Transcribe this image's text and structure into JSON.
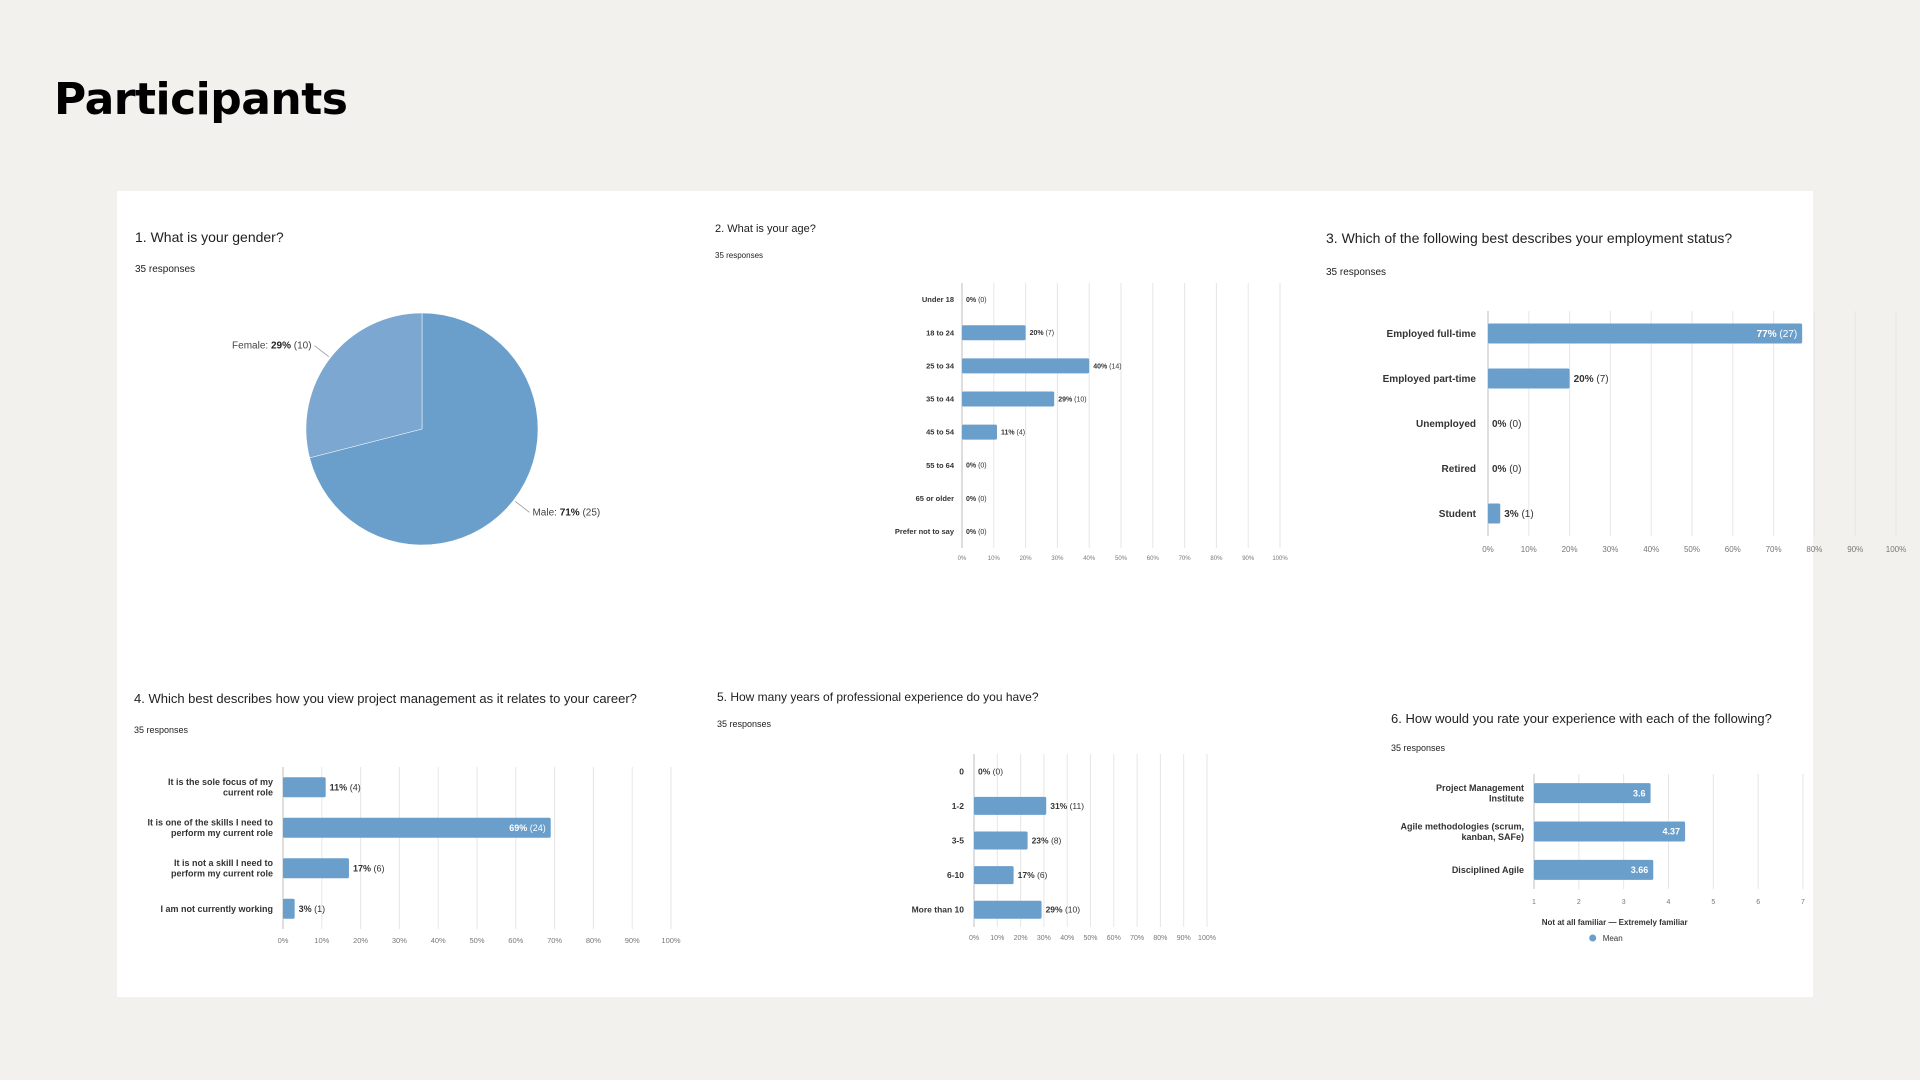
{
  "page": {
    "title": "Participants"
  },
  "colors": {
    "bar": "#6a9ecb",
    "pie_major": "#6a9ecb",
    "pie_minor": "#7ba7d1",
    "grid": "#e6e6e6",
    "axis": "#bdbdbd"
  },
  "chart_data": [
    {
      "id": "gender",
      "type": "pie",
      "title": "1. What is your gender?",
      "responses": "35 responses",
      "slices": [
        {
          "name": "Male",
          "value": 71,
          "count": 25,
          "pct_label": "71%",
          "count_label": "(25)"
        },
        {
          "name": "Female",
          "value": 29,
          "count": 10,
          "pct_label": "29%",
          "count_label": "(10)"
        }
      ]
    },
    {
      "id": "age",
      "type": "bar",
      "orientation": "horizontal",
      "title": "2. What is your age?",
      "responses": "35 responses",
      "categories": [
        "Under 18",
        "18 to 24",
        "25 to 34",
        "35 to 44",
        "45 to 54",
        "55 to 64",
        "65 or older",
        "Prefer not to say"
      ],
      "values": [
        0,
        20,
        40,
        29,
        11,
        0,
        0,
        0
      ],
      "counts": [
        0,
        7,
        14,
        10,
        4,
        0,
        0,
        0
      ],
      "xlim": [
        0,
        100
      ],
      "xticks": [
        "0%",
        "10%",
        "20%",
        "30%",
        "40%",
        "50%",
        "60%",
        "70%",
        "80%",
        "90%",
        "100%"
      ]
    },
    {
      "id": "employment",
      "type": "bar",
      "orientation": "horizontal",
      "title": "3. Which of the following best describes your employment status?",
      "responses": "35 responses",
      "categories": [
        "Employed full-time",
        "Employed part-time",
        "Unemployed",
        "Retired",
        "Student"
      ],
      "values": [
        77,
        20,
        0,
        0,
        3
      ],
      "counts": [
        27,
        7,
        0,
        0,
        1
      ],
      "xlim": [
        0,
        100
      ],
      "xticks": [
        "0%",
        "10%",
        "20%",
        "30%",
        "40%",
        "50%",
        "60%",
        "70%",
        "80%",
        "90%",
        "100%"
      ]
    },
    {
      "id": "pm_view",
      "type": "bar",
      "orientation": "horizontal",
      "title": "4. Which best describes how you view project management as it relates to your career?",
      "responses": "35 responses",
      "categories": [
        [
          "It is the sole focus of my",
          "current role"
        ],
        [
          "It is one of the skills I need to",
          "perform my current role"
        ],
        [
          "It is not a skill I need to",
          "perform my current role"
        ],
        [
          "I am not currently working"
        ]
      ],
      "values": [
        11,
        69,
        17,
        3
      ],
      "counts": [
        4,
        24,
        6,
        1
      ],
      "xlim": [
        0,
        100
      ],
      "xticks": [
        "0%",
        "10%",
        "20%",
        "30%",
        "40%",
        "50%",
        "60%",
        "70%",
        "80%",
        "90%",
        "100%"
      ]
    },
    {
      "id": "experience",
      "type": "bar",
      "orientation": "horizontal",
      "title": "5. How many years of professional experience do you have?",
      "responses": "35 responses",
      "categories": [
        "0",
        "1-2",
        "3-5",
        "6-10",
        "More than 10"
      ],
      "values": [
        0,
        31,
        23,
        17,
        29
      ],
      "counts": [
        0,
        11,
        8,
        6,
        10
      ],
      "xlim": [
        0,
        100
      ],
      "xticks": [
        "0%",
        "10%",
        "20%",
        "30%",
        "40%",
        "50%",
        "60%",
        "70%",
        "80%",
        "90%",
        "100%"
      ]
    },
    {
      "id": "rating",
      "type": "bar",
      "orientation": "horizontal",
      "title": "6. How would you rate your experience with each of the following?",
      "responses": "35 responses",
      "categories": [
        [
          "Project Management",
          "Institute"
        ],
        [
          "Agile methodologies (scrum,",
          "kanban, SAFe)"
        ],
        [
          "Disciplined Agile"
        ]
      ],
      "values": [
        3.6,
        4.37,
        3.66
      ],
      "value_labels": [
        "3.6",
        "4.37",
        "3.66"
      ],
      "xlim": [
        1,
        7
      ],
      "xticks": [
        "1",
        "2",
        "3",
        "4",
        "5",
        "6",
        "7"
      ],
      "xlabel": "Not at all familiar — Extremely familiar",
      "legend": [
        {
          "name": "Mean"
        }
      ]
    }
  ]
}
